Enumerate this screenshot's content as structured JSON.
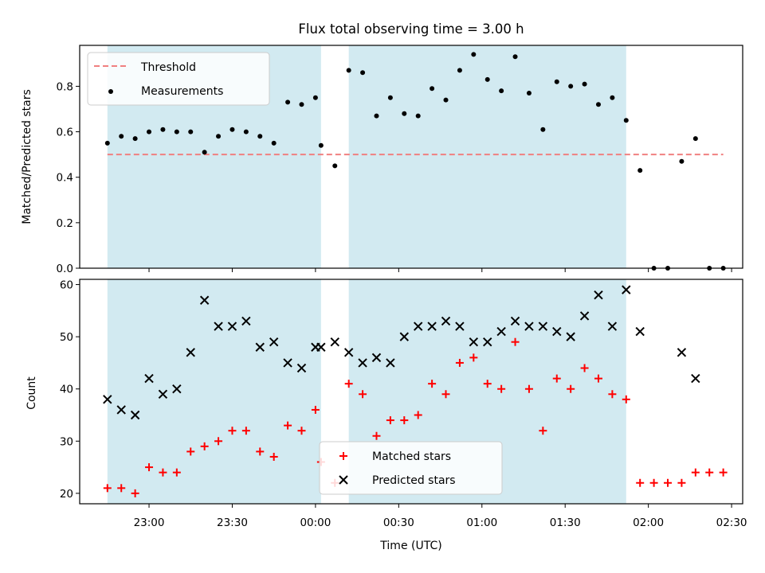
{
  "chart_data": [
    {
      "type": "scatter",
      "title": "Flux total observing time = 3.00 h",
      "ylabel": "Matched/Predicted stars",
      "ylim": [
        0,
        0.98
      ],
      "yticks": [
        0.0,
        0.2,
        0.4,
        0.6,
        0.8
      ],
      "grid": false,
      "legend": "top-left",
      "threshold": {
        "name": "Threshold",
        "value": 0.5,
        "color": "#f08080",
        "style": "dashed",
        "x_start": "22:45",
        "x_end": "02:27"
      },
      "shaded_intervals": [
        {
          "start": "22:45",
          "end": "00:02",
          "color": "#add8e6"
        },
        {
          "start": "00:12",
          "end": "01:52",
          "color": "#add8e6"
        }
      ],
      "series": [
        {
          "name": "Measurements",
          "marker": "dot",
          "color": "#000000",
          "points": [
            [
              "22:45",
              0.55
            ],
            [
              "22:50",
              0.58
            ],
            [
              "22:55",
              0.57
            ],
            [
              "23:00",
              0.6
            ],
            [
              "23:05",
              0.61
            ],
            [
              "23:10",
              0.6
            ],
            [
              "23:15",
              0.6
            ],
            [
              "23:20",
              0.51
            ],
            [
              "23:25",
              0.58
            ],
            [
              "23:30",
              0.61
            ],
            [
              "23:35",
              0.6
            ],
            [
              "23:40",
              0.58
            ],
            [
              "23:45",
              0.55
            ],
            [
              "23:50",
              0.73
            ],
            [
              "23:55",
              0.72
            ],
            [
              "00:00",
              0.75
            ],
            [
              "00:02",
              0.54
            ],
            [
              "00:07",
              0.45
            ],
            [
              "00:12",
              0.87
            ],
            [
              "00:17",
              0.86
            ],
            [
              "00:22",
              0.67
            ],
            [
              "00:27",
              0.75
            ],
            [
              "00:32",
              0.68
            ],
            [
              "00:37",
              0.67
            ],
            [
              "00:42",
              0.79
            ],
            [
              "00:47",
              0.74
            ],
            [
              "00:52",
              0.87
            ],
            [
              "00:57",
              0.94
            ],
            [
              "01:02",
              0.83
            ],
            [
              "01:07",
              0.78
            ],
            [
              "01:12",
              0.93
            ],
            [
              "01:17",
              0.77
            ],
            [
              "01:22",
              0.61
            ],
            [
              "01:27",
              0.82
            ],
            [
              "01:32",
              0.8
            ],
            [
              "01:37",
              0.81
            ],
            [
              "01:42",
              0.72
            ],
            [
              "01:47",
              0.75
            ],
            [
              "01:52",
              0.65
            ],
            [
              "01:57",
              0.43
            ],
            [
              "02:02",
              0.0
            ],
            [
              "02:07",
              0.0
            ],
            [
              "02:12",
              0.47
            ],
            [
              "02:17",
              0.57
            ],
            [
              "02:22",
              0.0
            ],
            [
              "02:27",
              0.0
            ]
          ]
        }
      ]
    },
    {
      "type": "scatter",
      "xlabel": "Time (UTC)",
      "ylabel": "Count",
      "ylim": [
        18,
        61
      ],
      "yticks": [
        20,
        30,
        40,
        50,
        60
      ],
      "xlim": [
        "22:35",
        "02:34"
      ],
      "xticks": [
        "23:00",
        "23:30",
        "00:00",
        "00:30",
        "01:00",
        "01:30",
        "02:00",
        "02:30"
      ],
      "grid": false,
      "legend": "bottom-center",
      "shaded_intervals": [
        {
          "start": "22:45",
          "end": "00:02",
          "color": "#add8e6"
        },
        {
          "start": "00:12",
          "end": "01:52",
          "color": "#add8e6"
        }
      ],
      "series": [
        {
          "name": "Matched stars",
          "marker": "plus",
          "color": "#ff0000",
          "points": [
            [
              "22:45",
              21
            ],
            [
              "22:50",
              21
            ],
            [
              "22:55",
              20
            ],
            [
              "23:00",
              25
            ],
            [
              "23:05",
              24
            ],
            [
              "23:10",
              24
            ],
            [
              "23:15",
              28
            ],
            [
              "23:20",
              29
            ],
            [
              "23:25",
              30
            ],
            [
              "23:30",
              32
            ],
            [
              "23:35",
              32
            ],
            [
              "23:40",
              28
            ],
            [
              "23:45",
              27
            ],
            [
              "23:50",
              33
            ],
            [
              "23:55",
              32
            ],
            [
              "00:00",
              36
            ],
            [
              "00:02",
              26
            ],
            [
              "00:07",
              22
            ],
            [
              "00:12",
              41
            ],
            [
              "00:17",
              39
            ],
            [
              "00:22",
              31
            ],
            [
              "00:27",
              34
            ],
            [
              "00:32",
              34
            ],
            [
              "00:37",
              35
            ],
            [
              "00:42",
              41
            ],
            [
              "00:47",
              39
            ],
            [
              "00:52",
              45
            ],
            [
              "00:57",
              46
            ],
            [
              "01:02",
              41
            ],
            [
              "01:07",
              40
            ],
            [
              "01:12",
              49
            ],
            [
              "01:17",
              40
            ],
            [
              "01:22",
              32
            ],
            [
              "01:27",
              42
            ],
            [
              "01:32",
              40
            ],
            [
              "01:37",
              44
            ],
            [
              "01:42",
              42
            ],
            [
              "01:47",
              39
            ],
            [
              "01:52",
              38
            ],
            [
              "01:57",
              22
            ],
            [
              "02:02",
              22
            ],
            [
              "02:07",
              22
            ],
            [
              "02:12",
              22
            ],
            [
              "02:17",
              24
            ],
            [
              "02:22",
              24
            ],
            [
              "02:27",
              24
            ]
          ]
        },
        {
          "name": "Predicted stars",
          "marker": "x",
          "color": "#000000",
          "points": [
            [
              "22:45",
              38
            ],
            [
              "22:50",
              36
            ],
            [
              "22:55",
              35
            ],
            [
              "23:00",
              42
            ],
            [
              "23:05",
              39
            ],
            [
              "23:10",
              40
            ],
            [
              "23:15",
              47
            ],
            [
              "23:20",
              57
            ],
            [
              "23:25",
              52
            ],
            [
              "23:30",
              52
            ],
            [
              "23:35",
              53
            ],
            [
              "23:40",
              48
            ],
            [
              "23:45",
              49
            ],
            [
              "23:50",
              45
            ],
            [
              "23:55",
              44
            ],
            [
              "00:00",
              48
            ],
            [
              "00:02",
              48
            ],
            [
              "00:07",
              49
            ],
            [
              "00:12",
              47
            ],
            [
              "00:17",
              45
            ],
            [
              "00:22",
              46
            ],
            [
              "00:27",
              45
            ],
            [
              "00:32",
              50
            ],
            [
              "00:37",
              52
            ],
            [
              "00:42",
              52
            ],
            [
              "00:47",
              53
            ],
            [
              "00:52",
              52
            ],
            [
              "00:57",
              49
            ],
            [
              "01:02",
              49
            ],
            [
              "01:07",
              51
            ],
            [
              "01:12",
              53
            ],
            [
              "01:17",
              52
            ],
            [
              "01:22",
              52
            ],
            [
              "01:27",
              51
            ],
            [
              "01:32",
              50
            ],
            [
              "01:37",
              54
            ],
            [
              "01:42",
              58
            ],
            [
              "01:47",
              52
            ],
            [
              "01:52",
              59
            ],
            [
              "01:57",
              51
            ],
            [
              "02:12",
              47
            ],
            [
              "02:17",
              42
            ]
          ]
        }
      ]
    }
  ]
}
